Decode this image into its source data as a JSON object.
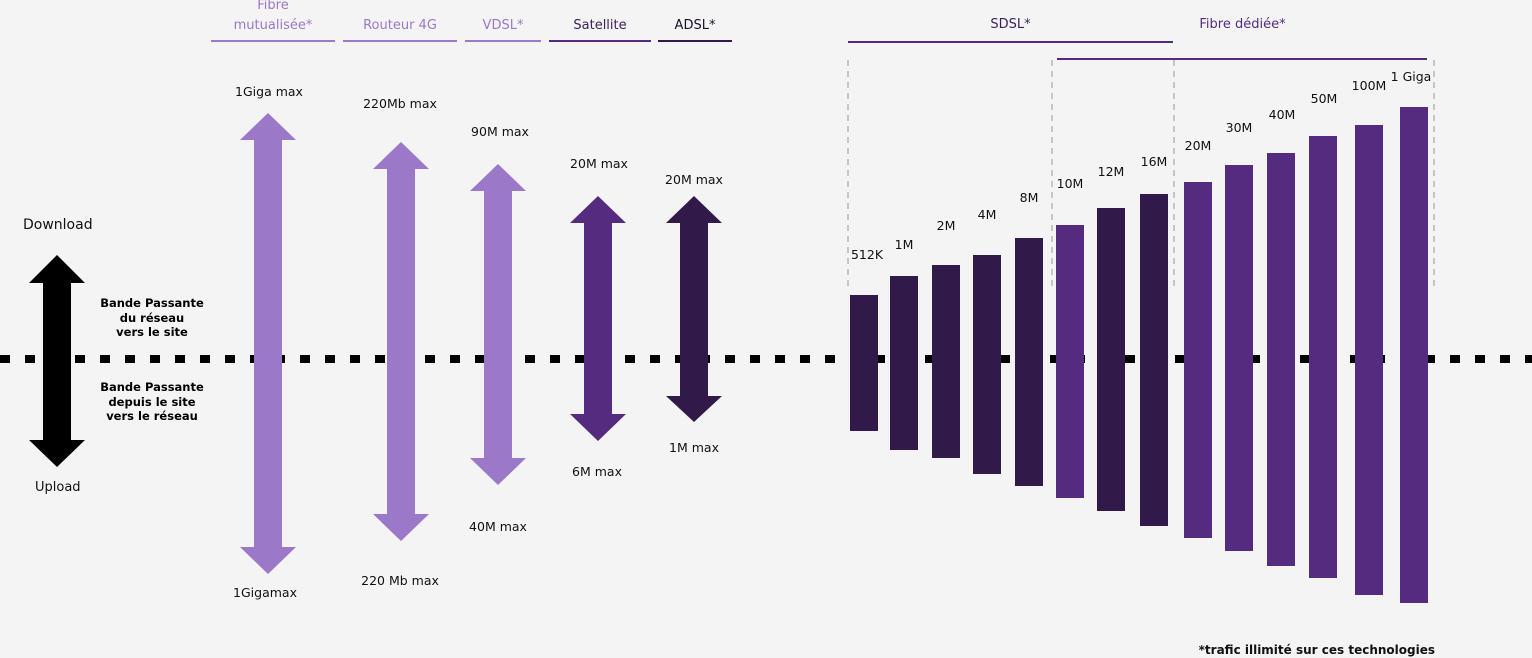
{
  "legend": {
    "download": "Download",
    "upload": "Upload",
    "upper_text": [
      "Bande Passante",
      "du réseau",
      "vers le site"
    ],
    "lower_text": [
      "Bande Passante",
      "depuis le site",
      "vers le réseau"
    ],
    "color": "#000000"
  },
  "technologies": [
    {
      "name": "Fibre mutualisée*",
      "name_lines": [
        "Fibre",
        "mutualisée*"
      ],
      "download": "1Giga max",
      "upload": "1Gigamax",
      "color": "#9b78c8"
    },
    {
      "name": "Routeur 4G",
      "download": "220Mb max",
      "upload": "220 Mb max",
      "color": "#9b78c8"
    },
    {
      "name": "VDSL*",
      "download": "90M max",
      "upload": "40M max",
      "color": "#9b78c8"
    },
    {
      "name": "Satellite",
      "download": "20M max",
      "upload": "6M max",
      "color": "#552b80"
    },
    {
      "name": "ADSL*",
      "download": "20M max",
      "upload": "1M max",
      "color": "#311a4a"
    }
  ],
  "symmetric": {
    "sdsl_label": "SDSL*",
    "fibre_label": "Fibre dédiée*",
    "sdsl_color": "#311a4a",
    "fibre_color": "#552b80",
    "bars": [
      {
        "label": "512K",
        "group": "sdsl"
      },
      {
        "label": "1M",
        "group": "sdsl"
      },
      {
        "label": "2M",
        "group": "sdsl"
      },
      {
        "label": "4M",
        "group": "sdsl"
      },
      {
        "label": "8M",
        "group": "sdsl"
      },
      {
        "label": "10M",
        "group": "fibre"
      },
      {
        "label": "12M",
        "group": "sdsl"
      },
      {
        "label": "16M",
        "group": "sdsl"
      },
      {
        "label": "20M",
        "group": "fibre"
      },
      {
        "label": "30M",
        "group": "fibre"
      },
      {
        "label": "40M",
        "group": "fibre"
      },
      {
        "label": "50M",
        "group": "fibre"
      },
      {
        "label": "100M",
        "group": "fibre"
      },
      {
        "label": "1 Giga",
        "group": "fibre"
      }
    ]
  },
  "footnote": "*trafic illimité sur ces technologies"
}
